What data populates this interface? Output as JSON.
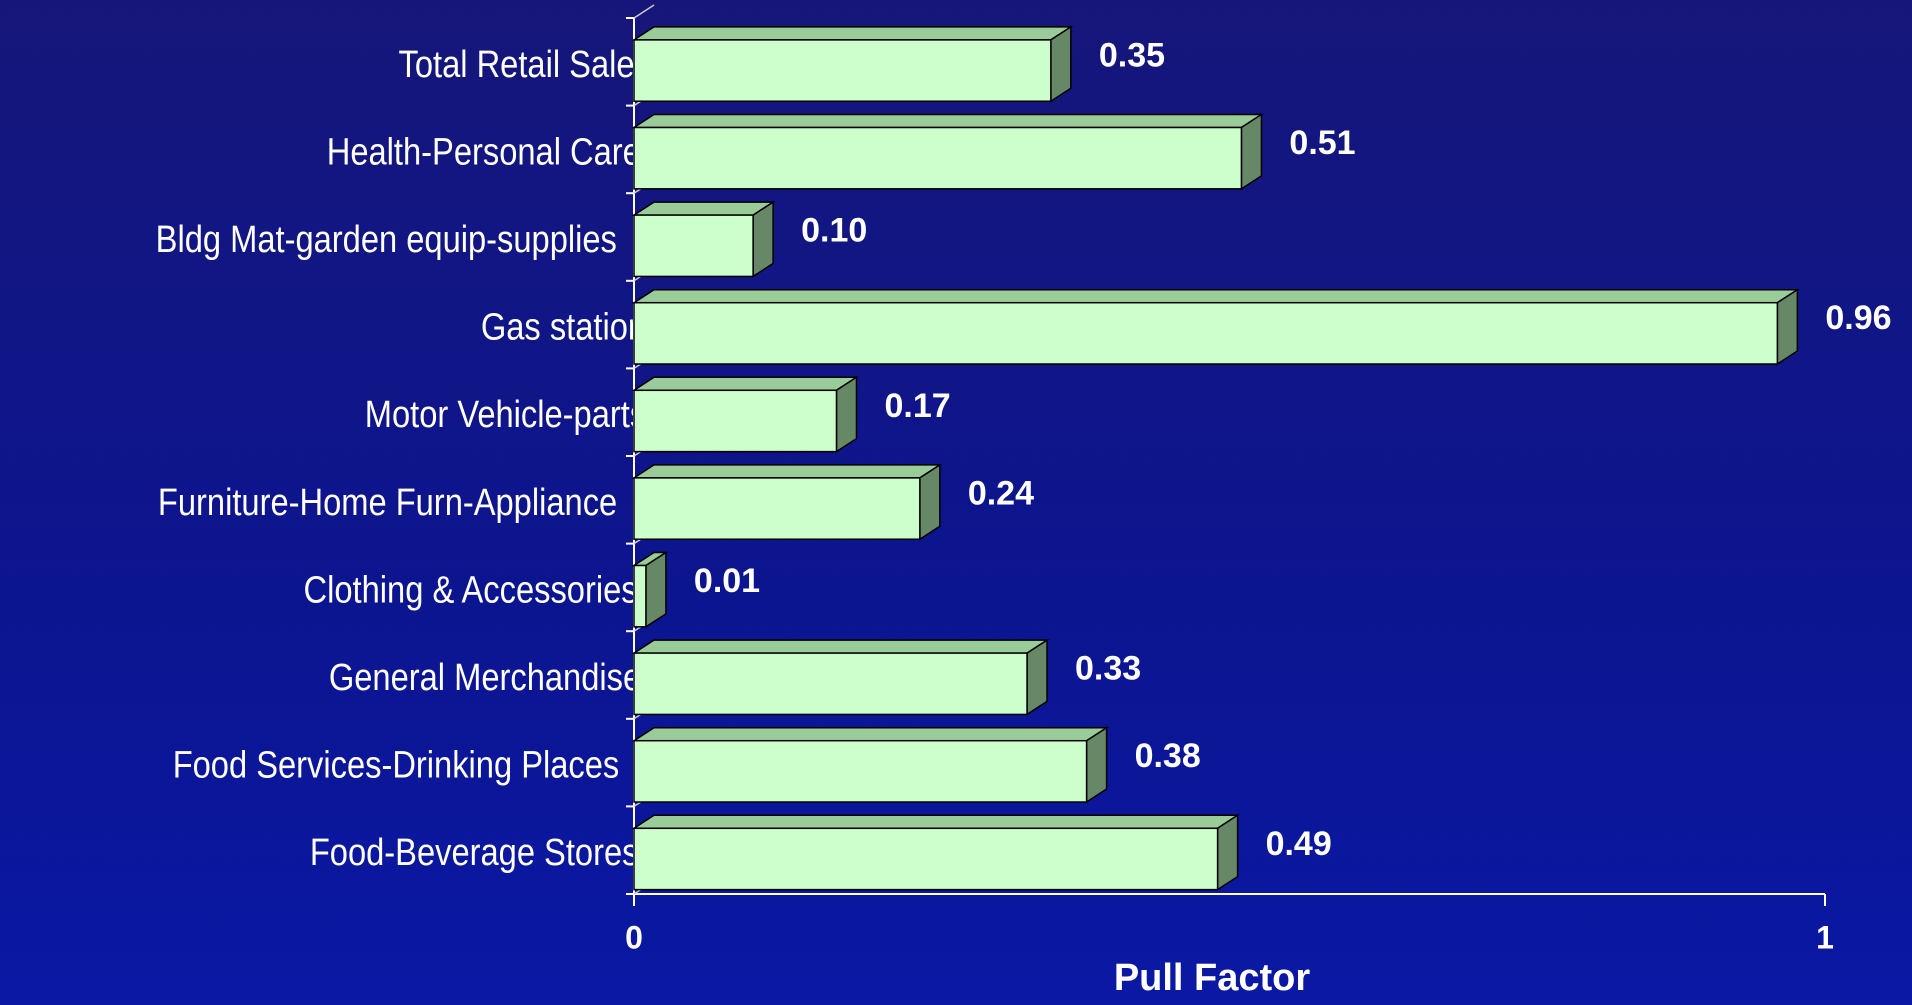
{
  "chart_data": {
    "type": "hbar3d",
    "xlabel": "Pull Factor",
    "categories": [
      "Total Retail Sales",
      "Health-Personal Care",
      "Bldg Mat-garden equip-supplies",
      "Gas stations",
      "Motor Vehicle-parts",
      "Furniture-Home Furn-Appliance",
      "Clothing & Accessories",
      "General Merchandise",
      "Food Services-Drinking Places",
      "Food-Beverage Stores"
    ],
    "values": [
      0.35,
      0.51,
      0.1,
      0.96,
      0.17,
      0.24,
      0.01,
      0.33,
      0.38,
      0.49
    ],
    "value_labels": [
      "0.35",
      "0.51",
      "0.10",
      "0.96",
      "0.17",
      "0.24",
      "0.01",
      "0.33",
      "0.38",
      "0.49"
    ],
    "colors": {
      "front": "#ccffcc",
      "top": "#99cc99",
      "side": "#668866"
    },
    "xlim": [
      0,
      1
    ],
    "xticks": [
      0,
      1
    ]
  }
}
